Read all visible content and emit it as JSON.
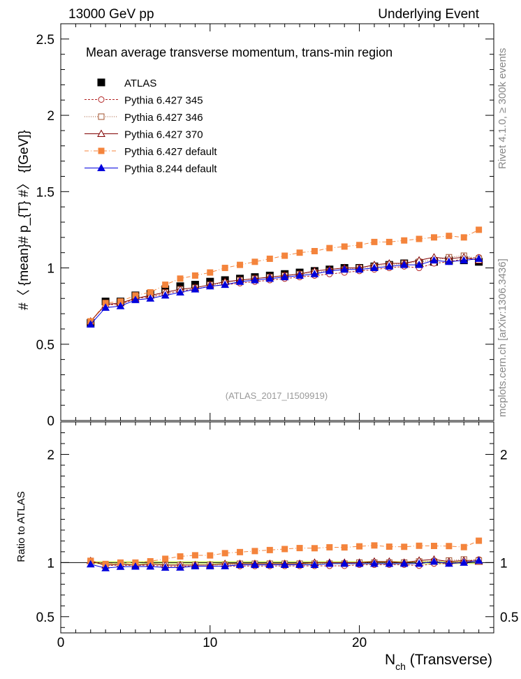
{
  "header": {
    "left": "13000 GeV pp",
    "right": "Underlying Event"
  },
  "side_labels": {
    "rivet": "Rivet 4.1.0, ≥ 300k events",
    "mcplots": "mcplots.cern.ch [arXiv:1306.3436]"
  },
  "chart_data": {
    "type": "line",
    "title": "Mean average transverse momentum, trans-min region",
    "watermark": "(ATLAS_2017_I1509919)",
    "xlabel_main": "N",
    "xlabel_sub": "ch",
    "xlabel_rest": " (Transverse)",
    "ylabel": "#〈 {mean}# p_{T} #〉 {[GeV]}",
    "ratio_ylabel": "Ratio to ATLAS",
    "xlim": [
      0,
      29
    ],
    "ylim": [
      0,
      2.6
    ],
    "ratio_ylim": [
      0.35,
      2.3
    ],
    "x_ticks": [
      "0",
      "10",
      "20"
    ],
    "y_ticks": [
      "0",
      "0.5",
      "1",
      "1.5",
      "2",
      "2.5"
    ],
    "ratio_y_ticks": [
      "0.5",
      "1",
      "2"
    ],
    "x": [
      2,
      3,
      4,
      5,
      6,
      7,
      8,
      9,
      10,
      11,
      12,
      13,
      14,
      15,
      16,
      17,
      18,
      19,
      20,
      21,
      22,
      23,
      24,
      25,
      26,
      27,
      28
    ],
    "series": [
      {
        "name": "ATLAS",
        "color": "#000000",
        "line": "none",
        "marker": "square",
        "values": [
          0.64,
          0.78,
          0.78,
          0.82,
          0.83,
          0.86,
          0.88,
          0.89,
          0.91,
          0.92,
          0.93,
          0.94,
          0.95,
          0.96,
          0.97,
          0.98,
          0.99,
          1.0,
          1.0,
          1.01,
          1.02,
          1.03,
          1.03,
          1.04,
          1.05,
          1.05,
          1.04
        ]
      },
      {
        "name": "Pythia 6.427 345",
        "color": "#b22222",
        "line": "3,2",
        "marker": "circle-open",
        "values": [
          0.65,
          0.76,
          0.76,
          0.8,
          0.81,
          0.83,
          0.85,
          0.86,
          0.88,
          0.89,
          0.9,
          0.91,
          0.92,
          0.93,
          0.94,
          0.95,
          0.96,
          0.97,
          0.98,
          0.99,
          1.0,
          1.01,
          1.0,
          1.03,
          1.04,
          1.06,
          1.07
        ]
      },
      {
        "name": "Pythia 6.427 346",
        "color": "#a0522d",
        "line": "1,2",
        "marker": "square-open",
        "values": [
          0.65,
          0.76,
          0.77,
          0.8,
          0.82,
          0.84,
          0.86,
          0.87,
          0.89,
          0.9,
          0.92,
          0.93,
          0.94,
          0.95,
          0.96,
          0.97,
          0.98,
          0.99,
          1.0,
          1.01,
          1.02,
          1.03,
          1.04,
          1.05,
          1.07,
          1.08,
          1.06
        ]
      },
      {
        "name": "Pythia 6.427 370",
        "color": "#800000",
        "line": "",
        "marker": "triangle-open",
        "values": [
          0.65,
          0.76,
          0.77,
          0.8,
          0.82,
          0.84,
          0.86,
          0.87,
          0.89,
          0.91,
          0.92,
          0.93,
          0.94,
          0.95,
          0.96,
          0.98,
          0.99,
          1.0,
          1.0,
          1.02,
          1.03,
          1.03,
          1.05,
          1.07,
          1.06,
          1.07,
          1.05
        ]
      },
      {
        "name": "Pythia 6.427 default",
        "color": "#f4843c",
        "line": "6,3,1,3",
        "marker": "square",
        "values": [
          0.65,
          0.77,
          0.78,
          0.82,
          0.84,
          0.89,
          0.93,
          0.95,
          0.97,
          1.0,
          1.02,
          1.04,
          1.06,
          1.08,
          1.1,
          1.11,
          1.13,
          1.14,
          1.15,
          1.17,
          1.17,
          1.18,
          1.19,
          1.2,
          1.21,
          1.2,
          1.25
        ]
      },
      {
        "name": "Pythia 8.244 default",
        "color": "#0000dd",
        "line": "",
        "marker": "triangle",
        "values": [
          0.63,
          0.74,
          0.75,
          0.79,
          0.8,
          0.82,
          0.84,
          0.86,
          0.88,
          0.89,
          0.91,
          0.92,
          0.93,
          0.94,
          0.95,
          0.96,
          0.98,
          0.99,
          0.99,
          1.0,
          1.01,
          1.02,
          1.02,
          1.05,
          1.04,
          1.05,
          1.06
        ]
      }
    ]
  }
}
